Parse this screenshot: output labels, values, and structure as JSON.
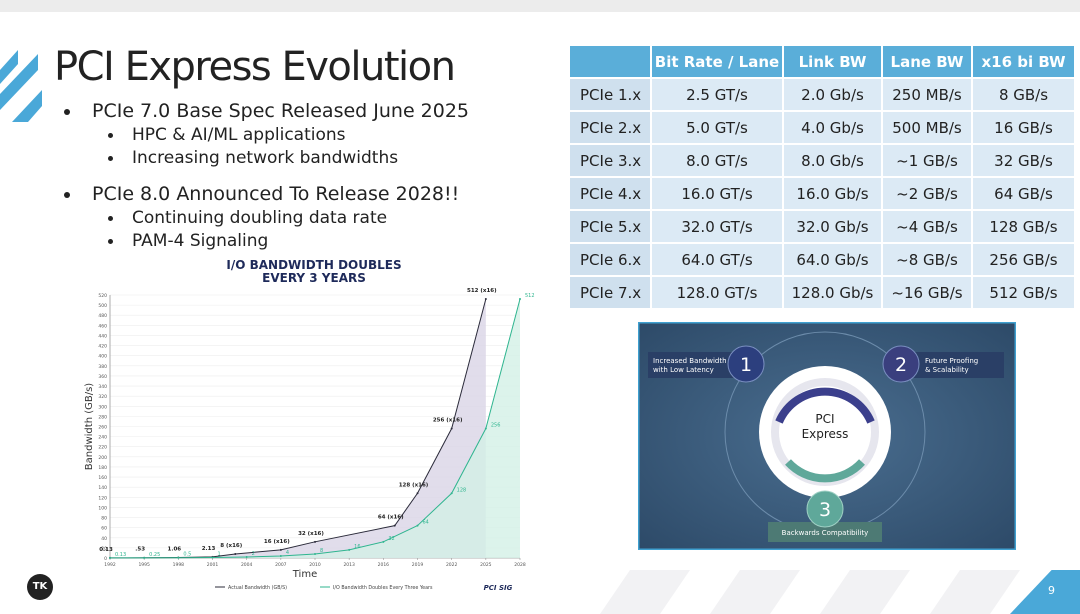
{
  "slide": {
    "title": "PCI Express Evolution",
    "bullets": [
      {
        "text": "PCIe 7.0 Base Spec Released June 2025",
        "sub": [
          "HPC & AI/ML applications",
          "Increasing network bandwidths"
        ]
      },
      {
        "text": "PCIe 8.0 Announced To Release 2028!!",
        "sub": [
          "Continuing doubling data rate",
          "PAM-4 Signaling"
        ]
      }
    ],
    "page_number": "9",
    "logo": "TK"
  },
  "table": {
    "header": [
      "",
      "Bit Rate / Lane",
      "Link BW",
      "Lane BW",
      "x16 bi BW"
    ],
    "rows": [
      [
        "PCIe 1.x",
        "2.5 GT/s",
        "2.0 Gb/s",
        "250 MB/s",
        "8 GB/s"
      ],
      [
        "PCIe 2.x",
        "5.0 GT/s",
        "4.0 Gb/s",
        "500 MB/s",
        "16 GB/s"
      ],
      [
        "PCIe 3.x",
        "8.0 GT/s",
        "8.0 Gb/s",
        "~1 GB/s",
        "32 GB/s"
      ],
      [
        "PCIe 4.x",
        "16.0 GT/s",
        "16.0 Gb/s",
        "~2 GB/s",
        "64 GB/s"
      ],
      [
        "PCIe 5.x",
        "32.0 GT/s",
        "32.0 Gb/s",
        "~4 GB/s",
        "128 GB/s"
      ],
      [
        "PCIe 6.x",
        "64.0 GT/s",
        "64.0 Gb/s",
        "~8 GB/s",
        "256 GB/s"
      ],
      [
        "PCIe 7.x",
        "128.0 GT/s",
        "128.0 Gb/s",
        "~16 GB/s",
        "512 GB/s"
      ]
    ]
  },
  "chart_data": {
    "type": "line",
    "title": "I/O BANDWIDTH DOUBLES EVERY 3 YEARS",
    "xlabel": "Time",
    "ylabel": "Bandwidth (GB/s)",
    "logo_text": "PCI SIG",
    "xlim": [
      1992,
      2028
    ],
    "xticks": [
      1992,
      1995,
      1998,
      2001,
      2004,
      2007,
      2010,
      2013,
      2016,
      2019,
      2022,
      2025,
      2028
    ],
    "ylim": [
      0,
      520
    ],
    "yticks": [
      0,
      20,
      40,
      60,
      80,
      100,
      120,
      140,
      160,
      180,
      200,
      220,
      240,
      260,
      280,
      300,
      320,
      340,
      360,
      380,
      400,
      420,
      440,
      460,
      480,
      500,
      520
    ],
    "series": [
      {
        "name": "Actual Bandwidth (GB/S)",
        "color": "#2b2b3a",
        "fill": "#d9d5e6",
        "x": [
          1992,
          1995,
          1998,
          2001,
          2003,
          2007,
          2010,
          2017,
          2019,
          2022,
          2025
        ],
        "values": [
          0.13,
          0.53,
          1.06,
          2.13,
          8,
          16,
          32,
          64,
          128,
          256,
          512
        ],
        "value_labels": [
          "0.13",
          ".53",
          "1.06",
          "2.13",
          "8 (x16)",
          "16 (x16)",
          "32 (x16)",
          "64 (x16)",
          "128 (x16)",
          "256 (x16)",
          "512 (x16)"
        ]
      },
      {
        "name": "I/O Bandwidth Doubles Every Three Years",
        "color": "#2fb58f",
        "fill": "#d3f0e6",
        "x": [
          1992,
          1995,
          1998,
          2001,
          2004,
          2007,
          2010,
          2013,
          2016,
          2019,
          2022,
          2025,
          2028
        ],
        "values": [
          0.13,
          0.25,
          0.5,
          1,
          2,
          4,
          8,
          16,
          32,
          64,
          128,
          256,
          512
        ]
      }
    ]
  },
  "diagram": {
    "center": [
      "PCI",
      "Express"
    ],
    "items": [
      {
        "number": "1",
        "label": [
          "Increased Bandwidth",
          "with Low Latency"
        ]
      },
      {
        "number": "2",
        "label": [
          "Future Proofing",
          "& Scalability"
        ]
      },
      {
        "number": "3",
        "label": [
          "Backwards Compatibility"
        ]
      }
    ]
  }
}
